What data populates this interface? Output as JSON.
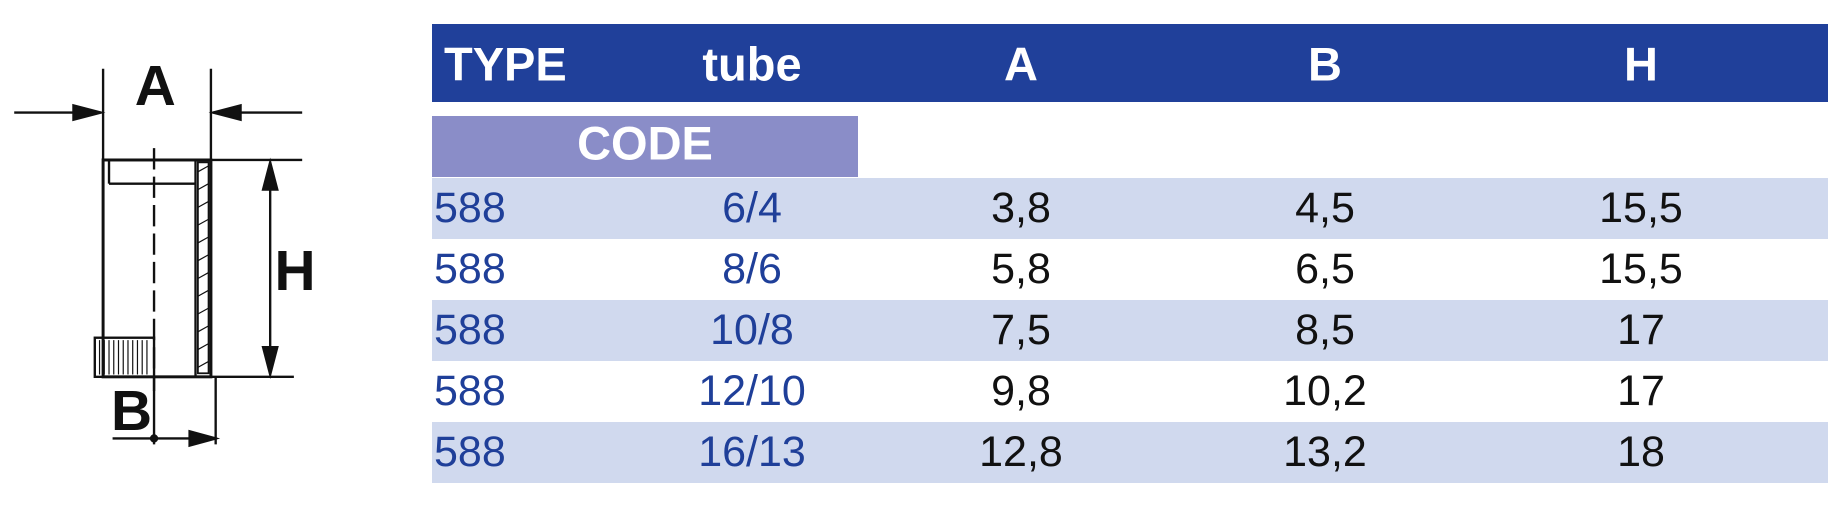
{
  "diagram": {
    "labels": [
      "A",
      "H",
      "B"
    ]
  },
  "table": {
    "header": [
      "TYPE",
      "tube",
      "A",
      "B",
      "H"
    ],
    "code_label": "CODE",
    "rows": [
      [
        "588",
        "6/4",
        "3,8",
        "4,5",
        "15,5"
      ],
      [
        "588",
        "8/6",
        "5,8",
        "6,5",
        "15,5"
      ],
      [
        "588",
        "10/8",
        "7,5",
        "8,5",
        "17"
      ],
      [
        "588",
        "12/10",
        "9,8",
        "10,2",
        "17"
      ],
      [
        "588",
        "16/13",
        "12,8",
        "13,2",
        "18"
      ]
    ]
  }
}
